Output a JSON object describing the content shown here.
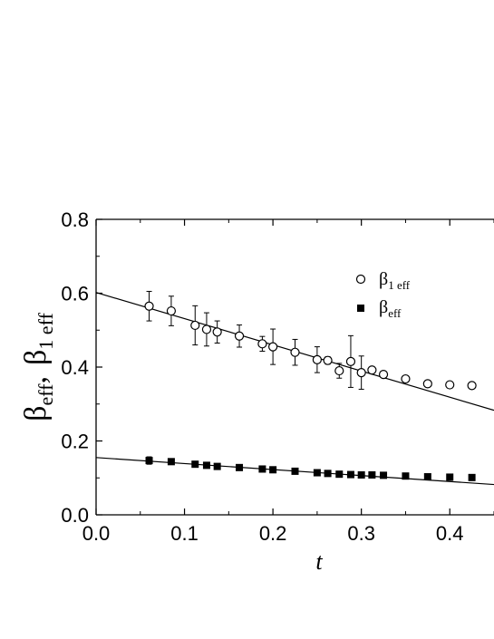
{
  "chart_data": {
    "type": "scatter",
    "title": "",
    "xlabel": "t",
    "ylabel": {
      "beta_eff": {
        "symbol": "β",
        "sub": "eff"
      },
      "sep": ",",
      "beta1_eff": {
        "symbol": "β",
        "sub": "1 eff"
      }
    },
    "xlim": [
      0.0,
      0.45
    ],
    "ylim": [
      0.0,
      0.8
    ],
    "x_ticks": [
      "0.0",
      "0.1",
      "0.2",
      "0.3",
      "0.4"
    ],
    "y_ticks": [
      "0.0",
      "0.2",
      "0.4",
      "0.6",
      "0.8"
    ],
    "grid": false,
    "legend_position": "upper-right",
    "series": [
      {
        "name": "β1 eff",
        "legend_symbol": "β",
        "legend_sub": "1 eff",
        "marker": "open-circle",
        "points": [
          {
            "x": 0.06,
            "y": 0.565,
            "err": 0.04
          },
          {
            "x": 0.085,
            "y": 0.552,
            "err": 0.04
          },
          {
            "x": 0.112,
            "y": 0.513,
            "err": 0.053
          },
          {
            "x": 0.125,
            "y": 0.502,
            "err": 0.045
          },
          {
            "x": 0.137,
            "y": 0.495,
            "err": 0.03
          },
          {
            "x": 0.162,
            "y": 0.484,
            "err": 0.03
          },
          {
            "x": 0.188,
            "y": 0.463,
            "err": 0.02
          },
          {
            "x": 0.2,
            "y": 0.455,
            "err": 0.048
          },
          {
            "x": 0.225,
            "y": 0.44,
            "err": 0.035
          },
          {
            "x": 0.25,
            "y": 0.42,
            "err": 0.035
          },
          {
            "x": 0.262,
            "y": 0.418,
            "err": 0.01
          },
          {
            "x": 0.275,
            "y": 0.39,
            "err": 0.02
          },
          {
            "x": 0.288,
            "y": 0.415,
            "err": 0.07
          },
          {
            "x": 0.3,
            "y": 0.385,
            "err": 0.045
          },
          {
            "x": 0.312,
            "y": 0.392,
            "err": 0
          },
          {
            "x": 0.325,
            "y": 0.38,
            "err": 0
          },
          {
            "x": 0.35,
            "y": 0.368,
            "err": 0
          },
          {
            "x": 0.375,
            "y": 0.355,
            "err": 0
          },
          {
            "x": 0.4,
            "y": 0.352,
            "err": 0
          },
          {
            "x": 0.425,
            "y": 0.35,
            "err": 0
          }
        ],
        "fit_line": {
          "x": [
            0.0,
            0.45
          ],
          "y": [
            0.602,
            0.283
          ]
        }
      },
      {
        "name": "βeff",
        "legend_symbol": "β",
        "legend_sub": "eff",
        "marker": "filled-square",
        "points": [
          {
            "x": 0.06,
            "y": 0.147,
            "err": 0.01
          },
          {
            "x": 0.085,
            "y": 0.144,
            "err": 0.007
          },
          {
            "x": 0.112,
            "y": 0.137,
            "err": 0
          },
          {
            "x": 0.125,
            "y": 0.134,
            "err": 0
          },
          {
            "x": 0.137,
            "y": 0.131,
            "err": 0
          },
          {
            "x": 0.162,
            "y": 0.128,
            "err": 0
          },
          {
            "x": 0.188,
            "y": 0.124,
            "err": 0
          },
          {
            "x": 0.2,
            "y": 0.122,
            "err": 0
          },
          {
            "x": 0.225,
            "y": 0.118,
            "err": 0
          },
          {
            "x": 0.25,
            "y": 0.114,
            "err": 0
          },
          {
            "x": 0.262,
            "y": 0.112,
            "err": 0
          },
          {
            "x": 0.275,
            "y": 0.11,
            "err": 0
          },
          {
            "x": 0.288,
            "y": 0.109,
            "err": 0
          },
          {
            "x": 0.3,
            "y": 0.108,
            "err": 0
          },
          {
            "x": 0.312,
            "y": 0.108,
            "err": 0
          },
          {
            "x": 0.325,
            "y": 0.107,
            "err": 0
          },
          {
            "x": 0.35,
            "y": 0.105,
            "err": 0
          },
          {
            "x": 0.375,
            "y": 0.103,
            "err": 0
          },
          {
            "x": 0.4,
            "y": 0.102,
            "err": 0
          },
          {
            "x": 0.425,
            "y": 0.101,
            "err": 0
          }
        ],
        "fit_line": {
          "x": [
            0.0,
            0.45
          ],
          "y": [
            0.155,
            0.082
          ]
        }
      }
    ]
  }
}
